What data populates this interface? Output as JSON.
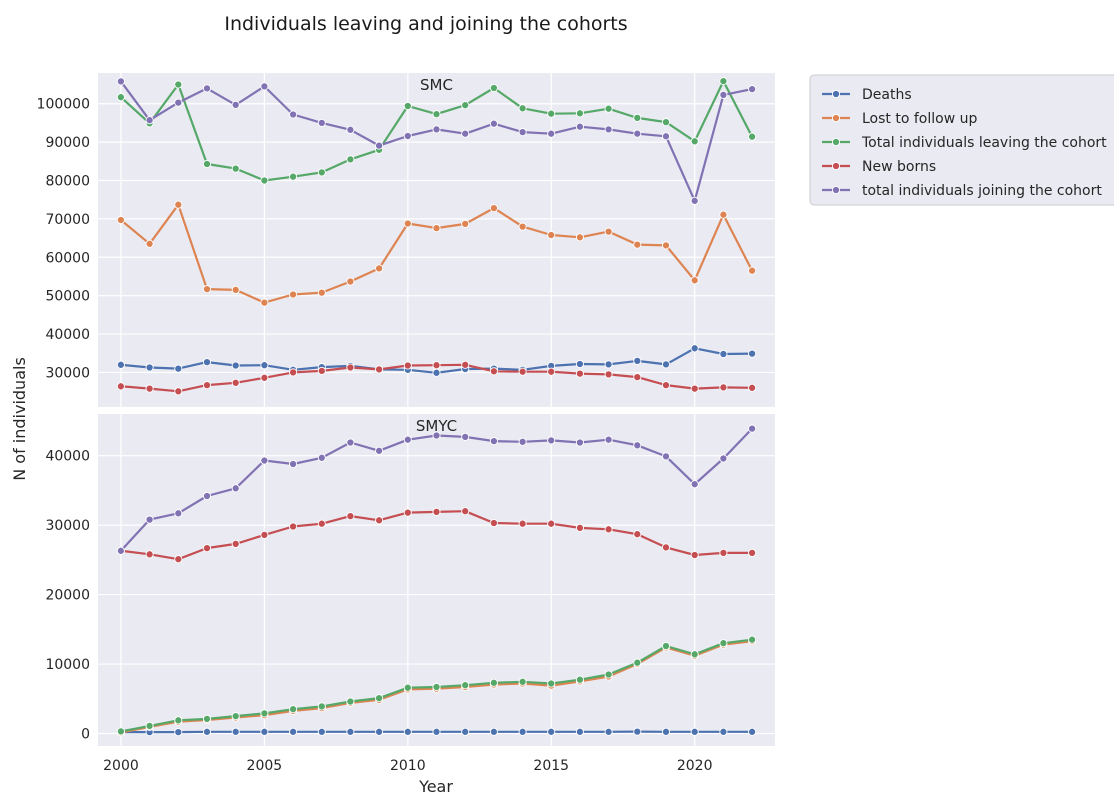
{
  "chart_data": {
    "type": "line",
    "title": "Individuals leaving and joining the cohorts",
    "xlabel": "Year",
    "ylabel": "N of individuals",
    "x": [
      2000,
      2001,
      2002,
      2003,
      2004,
      2005,
      2006,
      2007,
      2008,
      2009,
      2010,
      2011,
      2012,
      2013,
      2014,
      2015,
      2016,
      2017,
      2018,
      2019,
      2020,
      2021,
      2022
    ],
    "xlim": [
      1999.2,
      2022.8
    ],
    "xticks": [
      "2000",
      "2005",
      "2010",
      "2015",
      "2020"
    ],
    "grid": true,
    "legend_placement": "outside-top-right",
    "legend": [
      {
        "name": "Deaths",
        "color": "#4c72b0"
      },
      {
        "name": "Lost to follow up",
        "color": "#dd8452"
      },
      {
        "name": "Total individuals leaving the cohort",
        "color": "#55a868"
      },
      {
        "name": "New borns",
        "color": "#c44e52"
      },
      {
        "name": "total individuals joining the cohort",
        "color": "#8172b3"
      }
    ],
    "panels": [
      {
        "title": "SMC",
        "ylim": [
          21000,
          108000
        ],
        "yticks": [
          "30000",
          "40000",
          "50000",
          "60000",
          "70000",
          "80000",
          "90000",
          "100000"
        ],
        "series": [
          {
            "name": "Deaths",
            "color": "#4c72b0",
            "values": [
              32000,
              31300,
              31000,
              32700,
              31800,
              31900,
              30700,
              31400,
              31700,
              30800,
              30700,
              29900,
              30900,
              31000,
              30700,
              31700,
              32200,
              32100,
              33000,
              32100,
              36300,
              34800,
              34900
            ]
          },
          {
            "name": "Lost to follow up",
            "color": "#dd8452",
            "values": [
              69700,
              63500,
              73700,
              51700,
              51500,
              48200,
              50300,
              50800,
              53700,
              57100,
              68800,
              67600,
              68700,
              72800,
              68000,
              65800,
              65200,
              66700,
              63300,
              63100,
              54000,
              71100,
              56500
            ]
          },
          {
            "name": "Total individuals leaving the cohort",
            "color": "#55a868",
            "values": [
              101700,
              94900,
              105000,
              84300,
              83100,
              80000,
              81000,
              82100,
              85500,
              88000,
              99400,
              97300,
              99600,
              104100,
              98800,
              97400,
              97500,
              98700,
              96300,
              95200,
              90200,
              105900,
              91400
            ]
          },
          {
            "name": "New borns",
            "color": "#c44e52",
            "values": [
              26400,
              25800,
              25100,
              26700,
              27300,
              28600,
              30000,
              30400,
              31300,
              30800,
              31800,
              31900,
              32000,
              30300,
              30200,
              30200,
              29700,
              29500,
              28800,
              26700,
              25800,
              26100,
              26000
            ]
          },
          {
            "name": "total individuals joining the cohort",
            "color": "#8172b3",
            "values": [
              105800,
              95700,
              100300,
              104000,
              99700,
              104500,
              97200,
              95000,
              93200,
              89100,
              91600,
              93300,
              92200,
              94800,
              92600,
              92200,
              94000,
              93300,
              92200,
              91500,
              74700,
              102300,
              103800
            ]
          }
        ]
      },
      {
        "title": "SMYC",
        "ylim": [
          -1800,
          46000
        ],
        "yticks": [
          "0",
          "10000",
          "20000",
          "30000",
          "40000"
        ],
        "series": [
          {
            "name": "Deaths",
            "color": "#4c72b0",
            "values": [
              200,
              200,
              200,
              250,
              250,
              250,
              250,
              250,
              250,
              250,
              250,
              250,
              250,
              250,
              250,
              250,
              250,
              250,
              280,
              250,
              250,
              250,
              250
            ]
          },
          {
            "name": "Lost to follow up",
            "color": "#dd8452",
            "values": [
              150,
              950,
              1700,
              1950,
              2300,
              2650,
              3250,
              3650,
              4400,
              4850,
              6350,
              6450,
              6700,
              7050,
              7200,
              6900,
              7500,
              8200,
              10000,
              12400,
              11200,
              12800,
              13300
            ]
          },
          {
            "name": "Total individuals leaving the cohort",
            "color": "#55a868",
            "values": [
              300,
              1100,
              1900,
              2100,
              2500,
              2900,
              3500,
              3900,
              4600,
              5100,
              6600,
              6700,
              6950,
              7300,
              7450,
              7200,
              7750,
              8500,
              10200,
              12600,
              11400,
              13000,
              13500
            ]
          },
          {
            "name": "New borns",
            "color": "#c44e52",
            "values": [
              26300,
              25800,
              25100,
              26700,
              27300,
              28600,
              29800,
              30200,
              31300,
              30700,
              31800,
              31900,
              32000,
              30300,
              30200,
              30200,
              29600,
              29400,
              28700,
              26800,
              25700,
              26000,
              26000
            ]
          },
          {
            "name": "total individuals joining the cohort",
            "color": "#8172b3",
            "values": [
              26300,
              30800,
              31700,
              34200,
              35300,
              39300,
              38800,
              39700,
              41900,
              40700,
              42300,
              42900,
              42700,
              42100,
              42000,
              42200,
              41900,
              42300,
              41500,
              39900,
              35900,
              39600,
              43900
            ]
          }
        ]
      }
    ]
  }
}
